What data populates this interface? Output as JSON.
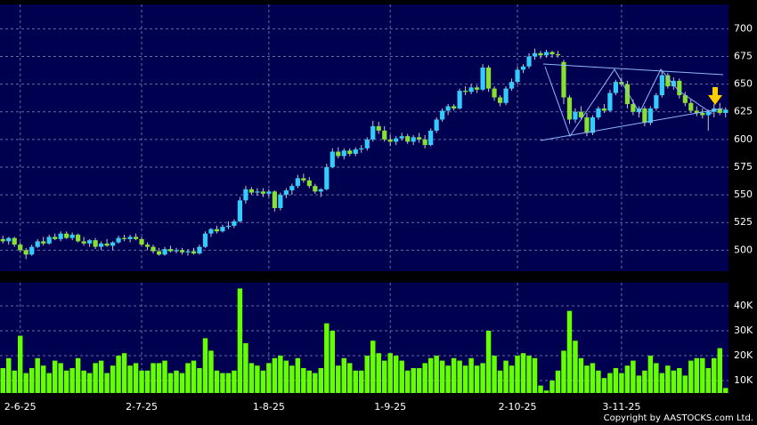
{
  "chart_data": {
    "type": "candlestick",
    "categories": [
      null,
      null,
      null,
      "2-6-25",
      null,
      null,
      null,
      null,
      null,
      null,
      null,
      null,
      null,
      null,
      null,
      null,
      null,
      null,
      null,
      null,
      null,
      null,
      null,
      null,
      "2-7-25",
      null,
      null,
      null,
      null,
      null,
      null,
      null,
      null,
      null,
      null,
      null,
      null,
      null,
      null,
      null,
      null,
      null,
      null,
      null,
      null,
      null,
      "1-8-25",
      null,
      null,
      null,
      null,
      null,
      null,
      null,
      null,
      null,
      null,
      null,
      null,
      null,
      null,
      null,
      null,
      null,
      null,
      null,
      null,
      "1-9-25",
      null,
      null,
      null,
      null,
      null,
      null,
      null,
      null,
      null,
      null,
      null,
      null,
      null,
      null,
      null,
      null,
      null,
      null,
      null,
      null,
      null,
      "2-10-25",
      null,
      null,
      null,
      null,
      null,
      null,
      null,
      null,
      null,
      null,
      null,
      null,
      null,
      null,
      null,
      null,
      null,
      "3-11-25",
      null,
      null,
      null,
      null,
      null,
      null,
      null,
      null,
      null,
      null,
      null,
      null,
      null,
      null,
      null,
      null,
      null,
      null
    ],
    "open": [
      510,
      508,
      511,
      505,
      500,
      496,
      503,
      508,
      506,
      512,
      510,
      515,
      511,
      514,
      508,
      506,
      509,
      503,
      506,
      504,
      507,
      511,
      510,
      512,
      510,
      505,
      503,
      499,
      496,
      501,
      499,
      500,
      498,
      499,
      497,
      503,
      515,
      519,
      517,
      521,
      522,
      526,
      545,
      555,
      552,
      553,
      551,
      553,
      538,
      550,
      554,
      558,
      565,
      563,
      558,
      553,
      555,
      575,
      589,
      585,
      590,
      587,
      591,
      592,
      600,
      612,
      608,
      600,
      598,
      601,
      603,
      598,
      602,
      600,
      595,
      608,
      618,
      626,
      630,
      628,
      644,
      643,
      647,
      645,
      665,
      646,
      638,
      633,
      646,
      652,
      663,
      666,
      675,
      678,
      676,
      679,
      677,
      670,
      638,
      618,
      625,
      620,
      606,
      620,
      628,
      626,
      642,
      652,
      650,
      632,
      625,
      628,
      615,
      628,
      640,
      658,
      648,
      653,
      640,
      633,
      626,
      624,
      622,
      625,
      628,
      624
    ],
    "high": [
      513,
      512,
      512,
      507,
      502,
      505,
      510,
      512,
      514,
      515,
      517,
      517,
      516,
      515,
      512,
      510,
      511,
      508,
      510,
      508,
      513,
      514,
      514,
      515,
      512,
      507,
      505,
      502,
      503,
      504,
      502,
      502,
      501,
      502,
      505,
      517,
      520,
      522,
      523,
      526,
      528,
      548,
      558,
      557,
      556,
      556,
      555,
      554,
      552,
      556,
      560,
      568,
      569,
      566,
      560,
      556,
      578,
      592,
      593,
      592,
      592,
      593,
      595,
      602,
      617,
      616,
      612,
      604,
      603,
      606,
      605,
      604,
      606,
      604,
      610,
      620,
      628,
      632,
      632,
      646,
      648,
      650,
      649,
      668,
      667,
      648,
      640,
      648,
      655,
      666,
      668,
      678,
      682,
      680,
      681,
      680,
      680,
      672,
      640,
      628,
      630,
      624,
      622,
      630,
      632,
      645,
      654,
      656,
      653,
      636,
      630,
      630,
      630,
      642,
      662,
      660,
      656,
      655,
      643,
      636,
      630,
      628,
      627,
      632,
      633,
      629
    ],
    "low": [
      506,
      505,
      503,
      498,
      492,
      495,
      502,
      504,
      505,
      509,
      508,
      510,
      509,
      507,
      504,
      503,
      501,
      500,
      503,
      500,
      506,
      508,
      507,
      509,
      504,
      500,
      497,
      495,
      495,
      498,
      497,
      496,
      495,
      496,
      496,
      502,
      512,
      515,
      516,
      519,
      520,
      525,
      542,
      550,
      549,
      548,
      548,
      535,
      536,
      547,
      550,
      556,
      561,
      556,
      551,
      548,
      554,
      574,
      583,
      582,
      585,
      585,
      588,
      590,
      598,
      605,
      598,
      594,
      595,
      599,
      596,
      595,
      597,
      592,
      594,
      606,
      616,
      622,
      626,
      627,
      640,
      641,
      642,
      644,
      643,
      635,
      630,
      631,
      644,
      650,
      660,
      664,
      672,
      673,
      674,
      674,
      674,
      632,
      614,
      615,
      618,
      603,
      604,
      618,
      624,
      625,
      640,
      648,
      628,
      622,
      620,
      612,
      613,
      626,
      638,
      646,
      645,
      637,
      630,
      624,
      621,
      619,
      608,
      620,
      622,
      620
    ],
    "close": [
      508,
      511,
      505,
      500,
      496,
      503,
      508,
      506,
      512,
      510,
      515,
      511,
      514,
      508,
      506,
      509,
      503,
      506,
      504,
      507,
      511,
      510,
      512,
      510,
      505,
      503,
      499,
      496,
      501,
      499,
      500,
      498,
      499,
      497,
      503,
      515,
      519,
      517,
      521,
      522,
      526,
      545,
      555,
      552,
      553,
      551,
      553,
      538,
      550,
      554,
      558,
      565,
      563,
      558,
      553,
      555,
      575,
      589,
      585,
      590,
      587,
      591,
      592,
      600,
      612,
      608,
      600,
      598,
      601,
      603,
      598,
      602,
      600,
      595,
      608,
      618,
      626,
      630,
      628,
      644,
      643,
      647,
      645,
      665,
      646,
      638,
      633,
      646,
      652,
      663,
      666,
      675,
      678,
      676,
      679,
      677,
      676,
      638,
      618,
      625,
      620,
      606,
      620,
      628,
      626,
      642,
      652,
      650,
      632,
      625,
      628,
      615,
      628,
      640,
      658,
      648,
      653,
      640,
      633,
      626,
      624,
      622,
      625,
      628,
      624,
      627
    ],
    "volume": [
      15000,
      19000,
      14000,
      28000,
      13000,
      15000,
      19000,
      16000,
      13000,
      18000,
      17000,
      14000,
      15000,
      19000,
      14000,
      13000,
      17000,
      18000,
      13000,
      16000,
      20000,
      21000,
      16000,
      17000,
      14000,
      14000,
      17000,
      17000,
      18000,
      13000,
      14000,
      13000,
      17000,
      18000,
      15000,
      27000,
      22000,
      14000,
      13000,
      13000,
      14000,
      47000,
      25000,
      17000,
      16000,
      14000,
      17000,
      19000,
      20000,
      18000,
      16000,
      19000,
      15000,
      14000,
      13000,
      15000,
      33000,
      30000,
      16000,
      19000,
      17000,
      14000,
      14000,
      20000,
      26000,
      21000,
      18000,
      21000,
      20000,
      18000,
      14000,
      15000,
      15000,
      17000,
      19000,
      20000,
      18000,
      16000,
      19000,
      18000,
      16000,
      19000,
      16000,
      17000,
      30000,
      20000,
      14000,
      18000,
      16000,
      20000,
      21000,
      20000,
      19000,
      8000,
      6000,
      10000,
      14000,
      22000,
      38000,
      26000,
      19000,
      16000,
      17000,
      14000,
      11000,
      13000,
      15000,
      13000,
      16000,
      18000,
      12000,
      14000,
      20000,
      17000,
      13000,
      16000,
      14000,
      15000,
      12000,
      18000,
      19000,
      19000,
      15000,
      19000,
      23000,
      7000
    ],
    "ylim": [
      481,
      722
    ],
    "yticks": [
      500,
      525,
      550,
      575,
      600,
      625,
      650,
      675,
      700
    ],
    "volume_ylim": [
      5000,
      49300
    ],
    "volume_yticks": [
      {
        "value": 10000,
        "label": "10K"
      },
      {
        "value": 20000,
        "label": "20K"
      },
      {
        "value": 30000,
        "label": "30K"
      },
      {
        "value": 40000,
        "label": "40K"
      }
    ],
    "up_color": "#33ccff",
    "down_color": "#88e030",
    "volume_color": "#66ff00",
    "grid": true,
    "copyright": "Copyright by AASTOCKS.com Ltd."
  }
}
